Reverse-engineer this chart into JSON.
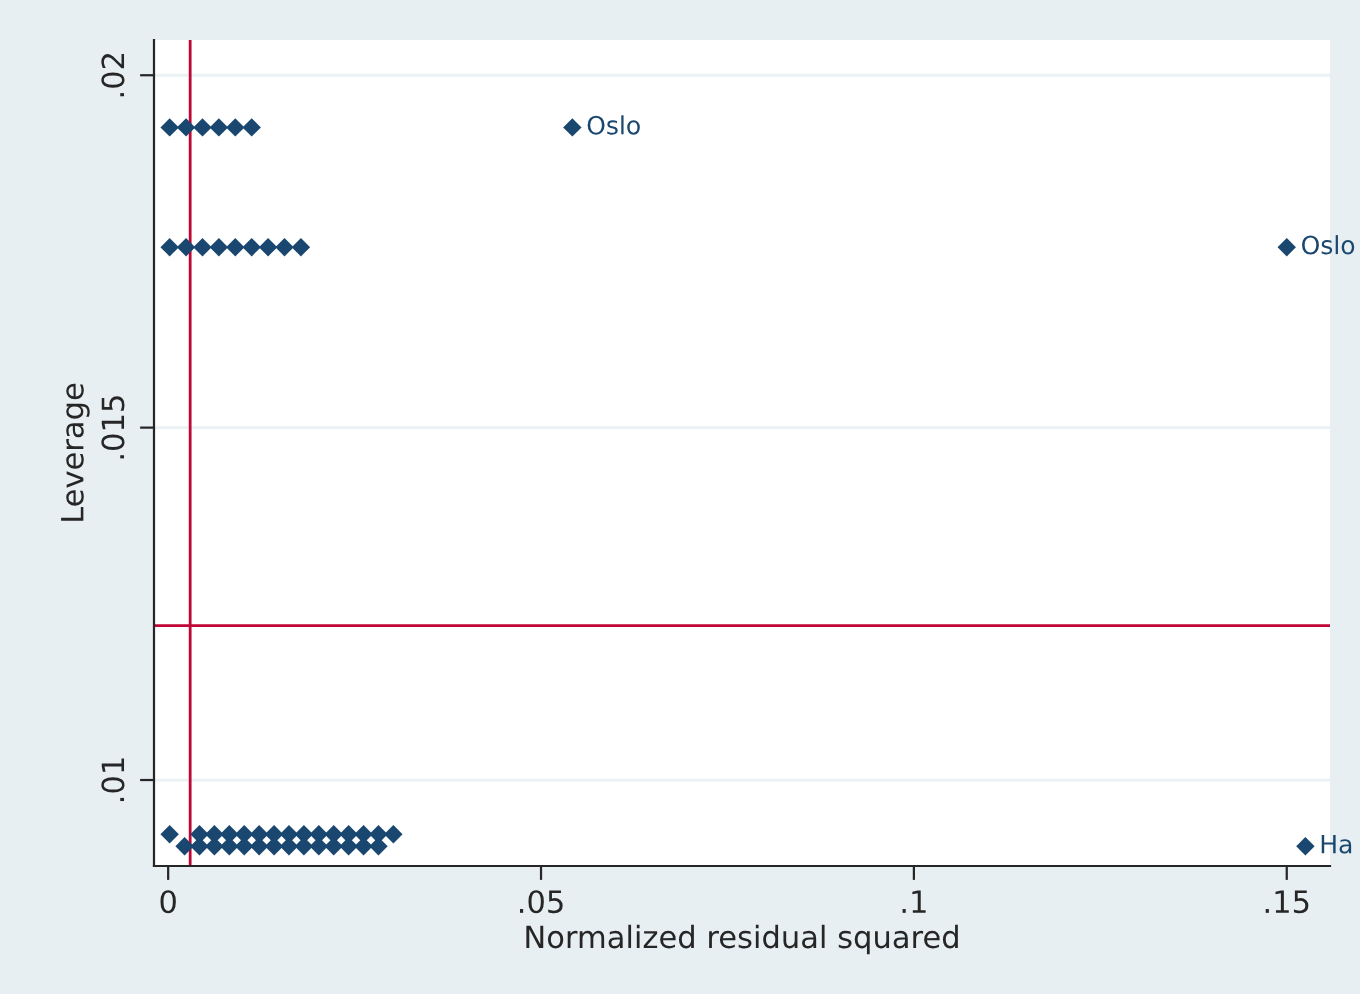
{
  "chart_data": {
    "type": "scatter",
    "xlabel": "Normalized residual squared",
    "ylabel": "Leverage",
    "xlim": [
      -0.0019,
      0.1558
    ],
    "ylim": [
      0.00878,
      0.0205
    ],
    "xticks": [
      {
        "value": 0,
        "label": "0"
      },
      {
        "value": 0.05,
        "label": ".05"
      },
      {
        "value": 0.1,
        "label": ".1"
      },
      {
        "value": 0.15,
        "label": ".15"
      }
    ],
    "yticks": [
      {
        "value": 0.01,
        "label": ".01"
      },
      {
        "value": 0.015,
        "label": ".015"
      },
      {
        "value": 0.02,
        "label": ".02"
      }
    ],
    "grid": "y",
    "marker": "diamond",
    "series": [
      {
        "color": "#1a476f",
        "x": [
          0.0002,
          0.0024,
          0.0046,
          0.0068,
          0.009,
          0.0112,
          0.0542,
          0.0002,
          0.0024,
          0.0046,
          0.0068,
          0.009,
          0.0112,
          0.0134,
          0.0156,
          0.0178,
          0.15,
          0.0002,
          0.0042,
          0.0082,
          0.0122,
          0.0162,
          0.0202,
          0.0242,
          0.0282,
          0.0302,
          0.0262,
          0.0222,
          0.0182,
          0.0142,
          0.0102,
          0.0062,
          0.0022,
          0.0062,
          0.0102,
          0.0142,
          0.0182,
          0.0222,
          0.0262,
          0.0282,
          0.0242,
          0.0202,
          0.0162,
          0.0122,
          0.0082,
          0.0042,
          0.1525
        ],
        "values": [
          0.01926,
          0.01926,
          0.01926,
          0.01926,
          0.01926,
          0.01926,
          0.01926,
          0.01756,
          0.01756,
          0.01756,
          0.01756,
          0.01756,
          0.01756,
          0.01756,
          0.01756,
          0.01756,
          0.01756,
          0.00923,
          0.00923,
          0.00923,
          0.00923,
          0.00923,
          0.00923,
          0.00923,
          0.00923,
          0.00923,
          0.00923,
          0.00923,
          0.00923,
          0.00923,
          0.00923,
          0.00923,
          0.00906,
          0.00906,
          0.00906,
          0.00906,
          0.00906,
          0.00906,
          0.00906,
          0.00906,
          0.00906,
          0.00906,
          0.00906,
          0.00906,
          0.00906,
          0.00906,
          0.00906
        ]
      }
    ],
    "ref_lines": [
      {
        "axis": "x",
        "value": 0.00295,
        "color": "#c10534"
      },
      {
        "axis": "y",
        "value": 0.01219,
        "color": "#c10534"
      }
    ],
    "annotations": [
      {
        "text": "Oslo",
        "x": 0.0542,
        "y": 0.01926
      },
      {
        "text": "Oslo",
        "x": 0.15,
        "y": 0.01756
      },
      {
        "text": "Ha",
        "x": 0.1525,
        "y": 0.00906
      }
    ]
  }
}
